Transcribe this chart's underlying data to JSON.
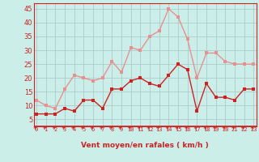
{
  "x": [
    0,
    1,
    2,
    3,
    4,
    5,
    6,
    7,
    8,
    9,
    10,
    11,
    12,
    13,
    14,
    15,
    16,
    17,
    18,
    19,
    20,
    21,
    22,
    23
  ],
  "wind_avg": [
    7,
    7,
    7,
    9,
    8,
    12,
    12,
    9,
    16,
    16,
    19,
    20,
    18,
    17,
    21,
    25,
    23,
    8,
    18,
    13,
    13,
    12,
    16,
    16
  ],
  "wind_gust": [
    12,
    10,
    9,
    16,
    21,
    20,
    19,
    20,
    26,
    22,
    31,
    30,
    35,
    37,
    45,
    42,
    34,
    20,
    29,
    29,
    26,
    25,
    25,
    25
  ],
  "color_avg": "#cc2222",
  "color_gust": "#e89090",
  "bg_color": "#cceee8",
  "grid_color": "#aacccc",
  "xlabel": "Vent moyen/en rafales ( km/h )",
  "xlabel_color": "#cc2222",
  "tick_color": "#cc2222",
  "ylabel_values": [
    5,
    10,
    15,
    20,
    25,
    30,
    35,
    40,
    45
  ],
  "ylim": [
    2.5,
    47
  ],
  "xlim": [
    -0.3,
    23.3
  ],
  "marker_size": 2.5,
  "linewidth": 1.0
}
